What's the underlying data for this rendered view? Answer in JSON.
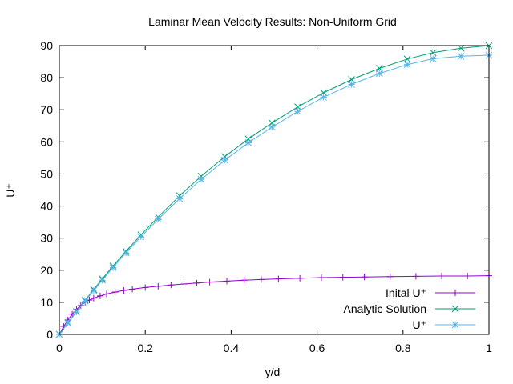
{
  "chart_data": {
    "type": "line",
    "title": "Laminar Mean Velocity Results: Non-Uniform Grid",
    "xlabel": "y/d",
    "ylabel": "U⁺",
    "xlim": [
      0,
      1
    ],
    "ylim": [
      0,
      90
    ],
    "xticks": [
      "0",
      "0.2",
      "0.4",
      "0.6",
      "0.8",
      "1"
    ],
    "yticks": [
      "0",
      "10",
      "20",
      "30",
      "40",
      "50",
      "60",
      "70",
      "80",
      "90"
    ],
    "grid": false,
    "legend_position": "bottom-right",
    "series": [
      {
        "name": "Inital U⁺",
        "color": "#9400d3",
        "marker": "plus",
        "x": [
          0,
          0.01,
          0.02,
          0.03,
          0.04,
          0.05,
          0.06,
          0.07,
          0.08,
          0.095,
          0.11,
          0.13,
          0.15,
          0.17,
          0.2,
          0.23,
          0.26,
          0.29,
          0.32,
          0.35,
          0.39,
          0.43,
          0.47,
          0.51,
          0.56,
          0.61,
          0.66,
          0.71,
          0.77,
          0.83,
          0.89,
          0.95,
          1.0
        ],
        "y": [
          0,
          2.5,
          4.5,
          6.3,
          7.8,
          9.0,
          10.0,
          10.7,
          11.3,
          12.0,
          12.6,
          13.2,
          13.7,
          14.1,
          14.6,
          15.0,
          15.4,
          15.7,
          16.0,
          16.3,
          16.6,
          16.9,
          17.1,
          17.3,
          17.5,
          17.7,
          17.8,
          17.9,
          18.0,
          18.1,
          18.2,
          18.2,
          18.3
        ]
      },
      {
        "name": "Analytic Solution",
        "color": "#009e73",
        "marker": "cross",
        "x": [
          0,
          0.02,
          0.04,
          0.06,
          0.08,
          0.1,
          0.125,
          0.155,
          0.19,
          0.23,
          0.28,
          0.33,
          0.385,
          0.44,
          0.495,
          0.555,
          0.615,
          0.68,
          0.745,
          0.81,
          0.87,
          0.935,
          1.0
        ],
        "y": [
          0,
          3.6,
          7.1,
          10.6,
          14.0,
          17.3,
          21.3,
          25.9,
          31.0,
          36.6,
          43.2,
          49.3,
          55.4,
          60.9,
          65.9,
          70.9,
          75.3,
          79.4,
          82.9,
          85.8,
          87.8,
          89.2,
          90.0
        ]
      },
      {
        "name": "U⁺",
        "color": "#56b4e9",
        "marker": "star",
        "x": [
          0,
          0.02,
          0.04,
          0.06,
          0.08,
          0.1,
          0.125,
          0.155,
          0.19,
          0.23,
          0.28,
          0.33,
          0.385,
          0.44,
          0.495,
          0.555,
          0.615,
          0.68,
          0.745,
          0.81,
          0.87,
          0.935,
          1.0
        ],
        "y": [
          0,
          3.5,
          7.0,
          10.4,
          13.7,
          16.9,
          20.8,
          25.4,
          30.4,
          35.9,
          42.3,
          48.3,
          54.3,
          59.7,
          64.6,
          69.5,
          73.9,
          77.9,
          81.3,
          84.1,
          85.9,
          86.7,
          87.0
        ]
      }
    ]
  }
}
